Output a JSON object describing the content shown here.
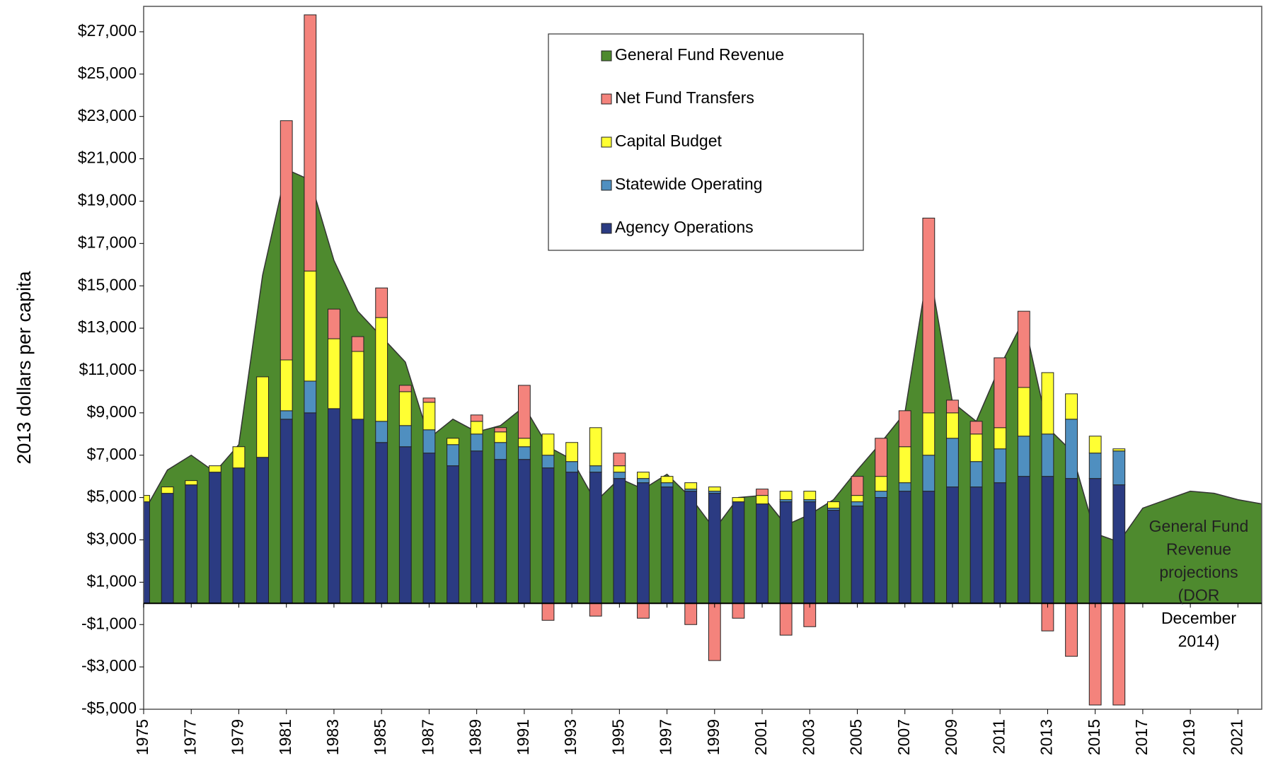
{
  "chart_data": {
    "type": "bar",
    "ylabel": "2013 dollars per capita",
    "x": [
      1975,
      1976,
      1977,
      1978,
      1979,
      1980,
      1981,
      1982,
      1983,
      1984,
      1985,
      1986,
      1987,
      1988,
      1989,
      1990,
      1991,
      1992,
      1993,
      1994,
      1995,
      1996,
      1997,
      1998,
      1999,
      2000,
      2001,
      2002,
      2003,
      2004,
      2005,
      2006,
      2007,
      2008,
      2009,
      2010,
      2011,
      2012,
      2013,
      2014,
      2015,
      2016
    ],
    "series": [
      {
        "name": "Agency Operations",
        "color": "#2b3b82",
        "values": [
          4800,
          5200,
          5600,
          6200,
          6400,
          6900,
          8700,
          9000,
          9200,
          8700,
          7600,
          7400,
          7100,
          6500,
          7200,
          6800,
          6800,
          6400,
          6200,
          6200,
          5900,
          5700,
          5500,
          5300,
          5200,
          4800,
          4700,
          4800,
          4800,
          4400,
          4600,
          5000,
          5300,
          5300,
          5500,
          5500,
          5700,
          6000,
          6000,
          5900,
          5900,
          5600
        ]
      },
      {
        "name": "Statewide Operating",
        "color": "#4f8fc0",
        "values": [
          0,
          0,
          0,
          0,
          0,
          0,
          400,
          1500,
          0,
          0,
          1000,
          1000,
          1100,
          1000,
          800,
          800,
          600,
          600,
          500,
          300,
          300,
          200,
          200,
          100,
          100,
          0,
          0,
          100,
          100,
          100,
          200,
          300,
          400,
          1700,
          2300,
          1200,
          1600,
          1900,
          2000,
          2800,
          1200,
          1600
        ]
      },
      {
        "name": "Capital Budget",
        "color": "#ffff33",
        "values": [
          300,
          300,
          200,
          300,
          1000,
          3800,
          2400,
          5200,
          3300,
          3200,
          4900,
          1600,
          1300,
          300,
          600,
          500,
          400,
          1000,
          900,
          1800,
          300,
          300,
          300,
          300,
          200,
          200,
          400,
          400,
          400,
          300,
          300,
          700,
          1700,
          2000,
          1200,
          1300,
          1000,
          2300,
          2900,
          1200,
          800,
          100
        ]
      },
      {
        "name": "Net Fund Transfers",
        "color": "#f4837c",
        "values": [
          0,
          0,
          0,
          0,
          0,
          0,
          11300,
          12100,
          1400,
          700,
          1400,
          300,
          200,
          0,
          300,
          200,
          2500,
          -800,
          0,
          -600,
          600,
          -700,
          0,
          -1000,
          -2700,
          -700,
          300,
          -1500,
          -1100,
          0,
          900,
          1800,
          1700,
          9200,
          600,
          600,
          3300,
          3600,
          -1300,
          -2500,
          -4800,
          -4800
        ]
      }
    ],
    "area": {
      "name": "General Fund Revenue",
      "color": "#4e8a2e",
      "x": [
        1975,
        1976,
        1977,
        1978,
        1979,
        1980,
        1981,
        1982,
        1983,
        1984,
        1985,
        1986,
        1987,
        1988,
        1989,
        1990,
        1991,
        1992,
        1993,
        1994,
        1995,
        1996,
        1997,
        1998,
        1999,
        2000,
        2001,
        2002,
        2003,
        2004,
        2005,
        2006,
        2007,
        2008,
        2009,
        2010,
        2011,
        2012,
        2013,
        2014,
        2015,
        2016,
        2017,
        2018,
        2019,
        2020,
        2021,
        2022
      ],
      "values": [
        4300,
        6300,
        7000,
        6200,
        7500,
        15500,
        20500,
        20000,
        16200,
        13800,
        12600,
        11400,
        7800,
        8700,
        8100,
        8400,
        9300,
        7400,
        6800,
        4800,
        5900,
        5400,
        6100,
        5000,
        3500,
        5000,
        5100,
        3700,
        4200,
        4900,
        6300,
        7600,
        9000,
        16000,
        9500,
        8600,
        11200,
        13400,
        8300,
        7200,
        3300,
        2900,
        4500,
        4900,
        5300,
        5200,
        4900,
        4700
      ]
    },
    "annotation": [
      "General Fund",
      "Revenue",
      "projections",
      "(DOR",
      "December",
      "2014)"
    ],
    "xlim": [
      1975,
      2022
    ],
    "xticks": [
      1975,
      1977,
      1979,
      1981,
      1983,
      1985,
      1987,
      1989,
      1991,
      1993,
      1995,
      1997,
      1999,
      2001,
      2003,
      2005,
      2007,
      2009,
      2011,
      2013,
      2015,
      2017,
      2019,
      2021
    ],
    "ylim": [
      -5000,
      28200
    ],
    "yticks": [
      {
        "value": -5000,
        "label": "-$5,000"
      },
      {
        "value": -3000,
        "label": "-$3,000"
      },
      {
        "value": -1000,
        "label": "-$1,000"
      },
      {
        "value": 1000,
        "label": "$1,000"
      },
      {
        "value": 3000,
        "label": "$3,000"
      },
      {
        "value": 5000,
        "label": "$5,000"
      },
      {
        "value": 7000,
        "label": "$7,000"
      },
      {
        "value": 9000,
        "label": "$9,000"
      },
      {
        "value": 11000,
        "label": "$11,000"
      },
      {
        "value": 13000,
        "label": "$13,000"
      },
      {
        "value": 15000,
        "label": "$15,000"
      },
      {
        "value": 17000,
        "label": "$17,000"
      },
      {
        "value": 19000,
        "label": "$19,000"
      },
      {
        "value": 21000,
        "label": "$21,000"
      },
      {
        "value": 23000,
        "label": "$23,000"
      },
      {
        "value": 25000,
        "label": "$25,000"
      },
      {
        "value": 27000,
        "label": "$27,000"
      }
    ],
    "legend": "top-center"
  }
}
